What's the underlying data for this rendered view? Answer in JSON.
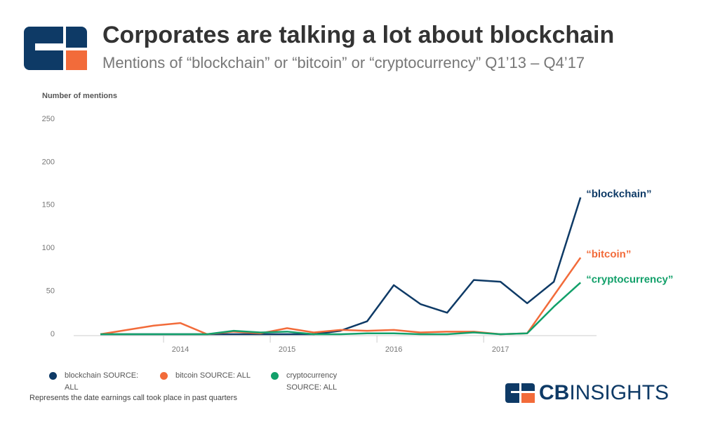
{
  "header": {
    "title": "Corporates are talking a lot about blockchain",
    "subtitle": "Mentions of “blockchain” or “bitcoin” or “cryptocurrency” Q1’13 – Q4’17"
  },
  "chart_data": {
    "type": "line",
    "y_axis_label": "Number of mentions",
    "x": [
      2013.25,
      2013.5,
      2013.75,
      2014,
      2014.25,
      2014.5,
      2014.75,
      2015,
      2015.25,
      2015.5,
      2015.75,
      2016,
      2016.25,
      2016.5,
      2016.75,
      2017,
      2017.25,
      2017.5,
      2017.75
    ],
    "xlim": [
      2013,
      2017.9
    ],
    "xticks": [
      2014,
      2015,
      2016,
      2017
    ],
    "ylim": [
      0,
      250
    ],
    "yticks": [
      0,
      50,
      100,
      150,
      200,
      250
    ],
    "grid": false,
    "series": [
      {
        "name": "blockchain SOURCE: ALL",
        "label": "“blockchain”",
        "color": "#0e3a66",
        "values": [
          0,
          0,
          0,
          0,
          0,
          0,
          0,
          0,
          0,
          4,
          15,
          57,
          35,
          25,
          63,
          61,
          36,
          61,
          159
        ]
      },
      {
        "name": "bitcoin SOURCE: ALL",
        "label": "“bitcoin”",
        "color": "#f26b3a",
        "values": [
          0,
          5,
          10,
          13,
          0,
          3,
          1,
          7,
          2,
          5,
          4,
          5,
          2,
          3,
          3,
          0,
          1,
          45,
          89
        ]
      },
      {
        "name": "cryptocurrency SOURCE: ALL",
        "label": "“cryptocurrency”",
        "color": "#12a06a",
        "values": [
          0,
          0,
          0,
          0,
          0,
          4,
          2,
          3,
          0,
          0,
          1,
          1,
          0,
          0,
          2,
          0,
          1,
          32,
          60
        ]
      }
    ],
    "footnote": "Represents the date earnings call took place in past quarters"
  },
  "brand": {
    "bold": "CB",
    "light": "INSIGHTS"
  }
}
